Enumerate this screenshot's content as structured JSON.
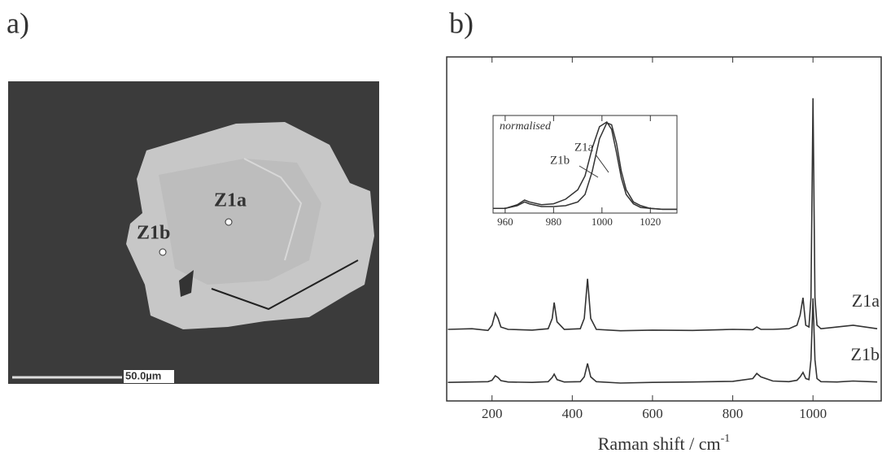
{
  "panel_labels": [
    "a)",
    "b)"
  ],
  "image": {
    "points": [
      "Z1a",
      "Z1b"
    ],
    "scale_bar": "50.0µm"
  },
  "chart_data": [
    {
      "type": "line",
      "x_label": "Raman shift / cm",
      "x_label_sup": "-1",
      "x": [
        90,
        150,
        190,
        200,
        208,
        215,
        222,
        240,
        300,
        340,
        350,
        355,
        362,
        380,
        420,
        430,
        438,
        446,
        460,
        520,
        600,
        700,
        800,
        850,
        860,
        870,
        900,
        940,
        960,
        968,
        975,
        982,
        990,
        995,
        1000,
        1005,
        1010,
        1020,
        1060,
        1100,
        1160
      ],
      "series": [
        {
          "name": "Z1a",
          "color": "#333333",
          "values": [
            20.8,
            21,
            20.5,
            22,
            25.5,
            24,
            21.5,
            20.8,
            20.6,
            21,
            24,
            28.6,
            23,
            20.8,
            21,
            24,
            35.5,
            24,
            20.8,
            20.4,
            20.6,
            20.5,
            20.8,
            20.7,
            21.5,
            20.8,
            20.8,
            21,
            22,
            25,
            30,
            22,
            21.5,
            30,
            88,
            30,
            22,
            21,
            21.5,
            22,
            21
          ]
        },
        {
          "name": "Z1b",
          "color": "#333333",
          "values": [
            5.4,
            5.5,
            5.6,
            6,
            7.3,
            6.8,
            5.9,
            5.5,
            5.4,
            5.6,
            6.8,
            7.8,
            6.2,
            5.5,
            5.6,
            7,
            10.9,
            7,
            5.6,
            5.2,
            5.4,
            5.5,
            5.7,
            6.5,
            8,
            7,
            5.8,
            5.6,
            6,
            7,
            8.3,
            6.5,
            6.2,
            12,
            29.8,
            12,
            6.5,
            5.6,
            5.5,
            5.8,
            5.5
          ]
        }
      ],
      "xlim": [
        87,
        1170
      ],
      "ylim": [
        0,
        100
      ],
      "xticks": [
        200,
        400,
        600,
        800,
        1000
      ]
    },
    {
      "type": "line",
      "title": "normalised",
      "x": [
        955,
        960,
        965,
        968,
        970,
        975,
        980,
        985,
        990,
        993,
        996,
        999,
        1002,
        1004,
        1006,
        1008,
        1010,
        1013,
        1016,
        1020,
        1025,
        1031
      ],
      "series": [
        {
          "name": "Z1a",
          "color": "#333333",
          "values": [
            0.05,
            0.05,
            0.08,
            0.12,
            0.1,
            0.07,
            0.07,
            0.08,
            0.12,
            0.2,
            0.45,
            0.8,
            0.97,
            0.95,
            0.75,
            0.45,
            0.25,
            0.12,
            0.08,
            0.05,
            0.04,
            0.04
          ]
        },
        {
          "name": "Z1b",
          "color": "#333333",
          "values": [
            0.05,
            0.05,
            0.09,
            0.14,
            0.12,
            0.09,
            0.1,
            0.15,
            0.25,
            0.4,
            0.7,
            0.93,
            0.98,
            0.9,
            0.65,
            0.38,
            0.2,
            0.1,
            0.06,
            0.05,
            0.04,
            0.04
          ]
        }
      ],
      "xlim": [
        955,
        1031
      ],
      "ylim": [
        0,
        1.05
      ],
      "xticks": [
        960,
        980,
        1000,
        1020
      ]
    }
  ]
}
